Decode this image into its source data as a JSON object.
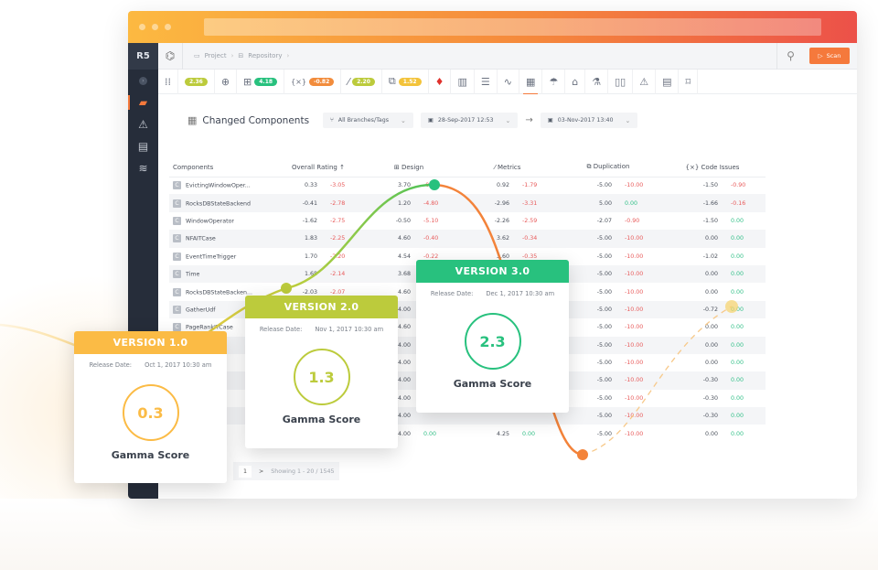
{
  "colors": {
    "accent": "#f5793c",
    "sidebar_bg": "#262d3a",
    "v1": "#fbbb45",
    "v2": "#bccb3c",
    "v3": "#28c17e",
    "negative": "#e85a5a",
    "positive": "#2fbf86"
  },
  "app": {
    "logo": "R5"
  },
  "topbar": {
    "breadcrumb": [
      {
        "icon": "project-icon",
        "label": "Project"
      },
      {
        "icon": "repository-icon",
        "label": "Repository"
      }
    ],
    "scan_label": "Scan"
  },
  "toolbar": {
    "pills": [
      {
        "value": "2.36",
        "color": "#bccb3c"
      },
      {
        "value": "4.18",
        "color": "#28c17e"
      },
      {
        "value": "-0.82",
        "color": "#f28c3c"
      },
      {
        "value": "2.20",
        "color": "#bccb3c"
      },
      {
        "value": "1.52",
        "color": "#f3c33a"
      }
    ]
  },
  "section": {
    "title": "Changed Components",
    "branch_filter": "All Branches/Tags",
    "date_from": "28-Sep-2017 12:53",
    "date_to": "03-Nov-2017 13:40"
  },
  "table": {
    "headers": [
      "Components",
      "Overall Rating",
      "Design",
      "Metrics",
      "Duplication",
      "Code Issues"
    ],
    "rows": [
      [
        "EvictingWindowOper...",
        "0.33",
        "-3.05",
        "3.70",
        "-0.51",
        "0.92",
        "-1.79",
        "-5.00",
        "-10.00",
        "-1.50",
        "-0.90"
      ],
      [
        "RocksDBStateBackend",
        "-0.41",
        "-2.78",
        "1.20",
        "-4.80",
        "-2.96",
        "-3.31",
        "5.00",
        "0.00",
        "-1.66",
        "-0.16"
      ],
      [
        "WindowOperator",
        "-1.62",
        "-2.75",
        "-0.50",
        "-5.10",
        "-2.26",
        "-2.59",
        "-2.07",
        "-0.90",
        "-1.50",
        "0.00"
      ],
      [
        "NFAITCase",
        "1.83",
        "-2.25",
        "4.60",
        "-0.40",
        "3.62",
        "-0.34",
        "-5.00",
        "-10.00",
        "0.00",
        "0.00"
      ],
      [
        "EventTimeTrigger",
        "1.70",
        "-2.20",
        "4.54",
        "-0.22",
        "3.60",
        "-0.35",
        "-5.00",
        "-10.00",
        "-1.02",
        "0.00"
      ],
      [
        "Time",
        "1.68",
        "-2.14",
        "3.68",
        "",
        "",
        "",
        "-5.00",
        "-10.00",
        "0.00",
        "0.00"
      ],
      [
        "RocksDBStateBacken...",
        "-2.03",
        "-2.07",
        "4.60",
        "",
        "",
        "",
        "-5.00",
        "-10.00",
        "0.00",
        "0.00"
      ],
      [
        "GatherUdf",
        "",
        "",
        "4.00",
        "",
        "",
        "",
        "-5.00",
        "-10.00",
        "-0.72",
        "0.00"
      ],
      [
        "PageRankITCase",
        "",
        "",
        "4.60",
        "",
        "",
        "",
        "-5.00",
        "-10.00",
        "0.00",
        "0.00"
      ],
      [
        "...Gelter...",
        "",
        "",
        "4.00",
        "",
        "",
        "",
        "-5.00",
        "-10.00",
        "0.00",
        "0.00"
      ],
      [
        "...Group",
        "",
        "",
        "4.00",
        "",
        "",
        "",
        "-5.00",
        "-10.00",
        "0.00",
        "0.00"
      ],
      [
        "",
        "",
        "",
        "4.00",
        "",
        "",
        "",
        "-5.00",
        "-10.00",
        "-0.30",
        "0.00"
      ],
      [
        "...tion",
        "",
        "",
        "4.00",
        "",
        "",
        "",
        "-5.00",
        "-10.00",
        "-0.30",
        "0.00"
      ],
      [
        "",
        "",
        "",
        "4.00",
        "",
        "",
        "",
        "-5.00",
        "-10.00",
        "-0.30",
        "0.00"
      ],
      [
        "...onTest",
        "",
        "",
        "4.00",
        "0.00",
        "4.25",
        "0.00",
        "-5.00",
        "-10.00",
        "0.00",
        "0.00"
      ]
    ]
  },
  "pager": {
    "page": "1",
    "next": ">",
    "info": "Showing  1 - 20 / 1545"
  },
  "cards": [
    {
      "title": "VERSION 1.0",
      "date_label": "Release Date:",
      "date": "Oct 1, 2017 10:30 am",
      "score": "0.3",
      "score_label": "Gamma Score"
    },
    {
      "title": "VERSION 2.0",
      "date_label": "Release Date:",
      "date": "Nov 1, 2017 10:30 am",
      "score": "1.3",
      "score_label": "Gamma Score"
    },
    {
      "title": "VERSION 3.0",
      "date_label": "Release Date:",
      "date": "Dec 1, 2017 10:30 am",
      "score": "2.3",
      "score_label": "Gamma Score"
    }
  ]
}
